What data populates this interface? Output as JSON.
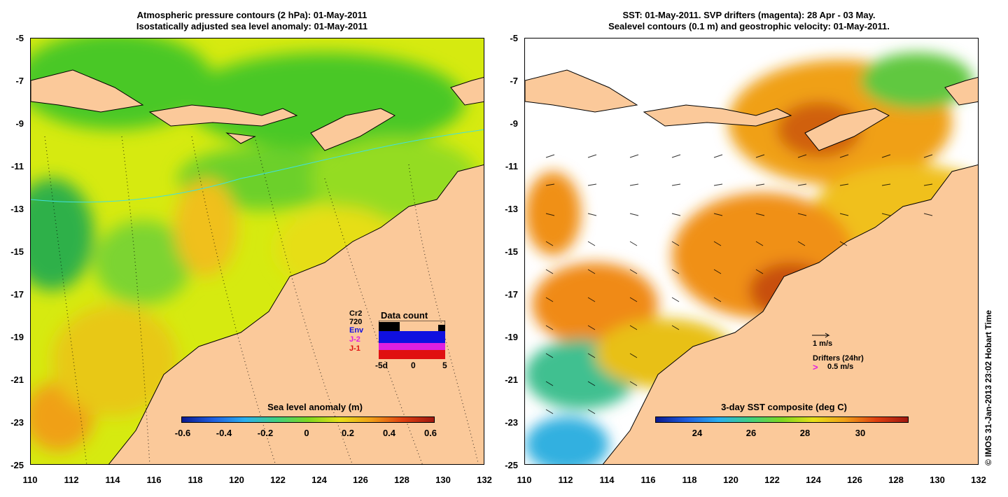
{
  "left": {
    "title_line1": "Atmospheric pressure contours (2 hPa): 01-May-2011",
    "title_line2": "Isostatically adjusted sea level anomaly: 01-May-2011",
    "y_ticks": [
      "-5",
      "-7",
      "-9",
      "-11",
      "-13",
      "-15",
      "-17",
      "-19",
      "-21",
      "-23",
      "-25"
    ],
    "x_ticks": [
      "110",
      "112",
      "114",
      "116",
      "118",
      "120",
      "122",
      "124",
      "126",
      "128",
      "130",
      "132"
    ],
    "colorbar_title": "Sea level anomaly (m)",
    "colorbar_ticks": [
      "-0.6",
      "-0.4",
      "-0.2",
      "0",
      "0.2",
      "0.4",
      "0.6"
    ],
    "inset": {
      "title": "Data count",
      "legend": [
        "Cr2",
        "720",
        "Env",
        "J-2",
        "J-1"
      ],
      "xticks": [
        "-5d",
        "0",
        "5"
      ],
      "legend_colors": [
        "#000000",
        "#000000",
        "#1010e0",
        "#e020e0",
        "#e01010"
      ]
    }
  },
  "right": {
    "title_line1": "SST: 01-May-2011. SVP drifters (magenta): 28 Apr - 03 May.",
    "title_line2": "Sealevel contours (0.1 m) and geostrophic velocity: 01-May-2011.",
    "y_ticks": [
      "-5",
      "-7",
      "-9",
      "-11",
      "-13",
      "-15",
      "-17",
      "-19",
      "-21",
      "-23",
      "-25"
    ],
    "x_ticks": [
      "110",
      "112",
      "114",
      "116",
      "118",
      "120",
      "122",
      "124",
      "126",
      "128",
      "130",
      "132"
    ],
    "colorbar_title": "3-day SST composite (deg C)",
    "colorbar_ticks": [
      "24",
      "26",
      "28",
      "30"
    ],
    "velocity_scale_label": "1 m/s",
    "drifters_label": "Drifters (24hr)",
    "drifters_scale_symbol": ">",
    "drifters_scale_label": "0.5 m/s"
  },
  "copyright": "© IMOS 31-Jan-2013 23:02 Hobart Time",
  "colors": {
    "land": "#fbc99a",
    "sea_green": "#44cc22",
    "sea_yellow": "#e6ea10",
    "sst_orange": "#f08a18"
  }
}
